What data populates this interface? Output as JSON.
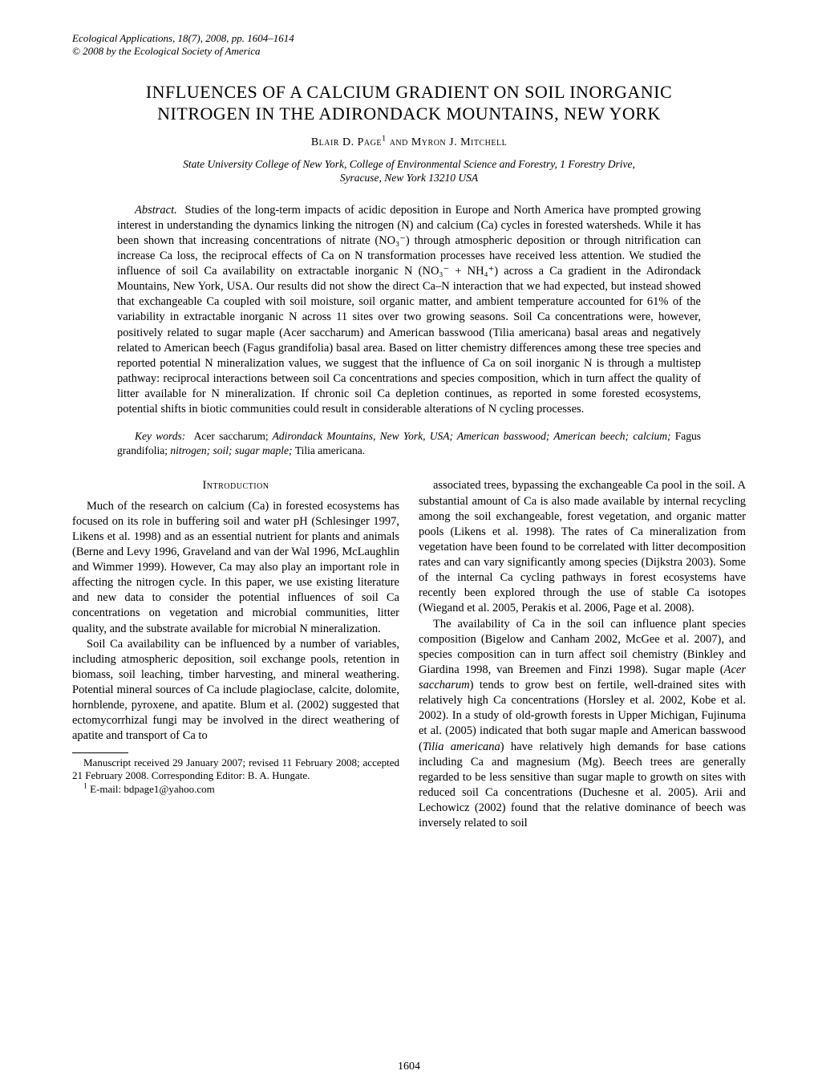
{
  "running_head": {
    "line1": "Ecological Applications, 18(7), 2008, pp. 1604–1614",
    "line2": "© 2008 by the Ecological Society of America"
  },
  "title_line1": "INFLUENCES OF A CALCIUM GRADIENT ON SOIL INORGANIC",
  "title_line2": "NITROGEN IN THE ADIRONDACK MOUNTAINS, NEW YORK",
  "authors_html": "Blair D. Page<sup>1</sup> and Myron J. Mitchell",
  "affiliation_line1": "State University College of New York, College of Environmental Science and Forestry, 1 Forestry Drive,",
  "affiliation_line2": "Syracuse, New York 13210 USA",
  "abstract_label": "Abstract.",
  "abstract_body": "Studies of the long-term impacts of acidic deposition in Europe and North America have prompted growing interest in understanding the dynamics linking the nitrogen (N) and calcium (Ca) cycles in forested watersheds. While it has been shown that increasing concentrations of nitrate (NO₃⁻) through atmospheric deposition or through nitrification can increase Ca loss, the reciprocal effects of Ca on N transformation processes have received less attention. We studied the influence of soil Ca availability on extractable inorganic N (NO₃⁻ + NH₄⁺) across a Ca gradient in the Adirondack Mountains, New York, USA. Our results did not show the direct Ca–N interaction that we had expected, but instead showed that exchangeable Ca coupled with soil moisture, soil organic matter, and ambient temperature accounted for 61% of the variability in extractable inorganic N across 11 sites over two growing seasons. Soil Ca concentrations were, however, positively related to sugar maple (Acer saccharum) and American basswood (Tilia americana) basal areas and negatively related to American beech (Fagus grandifolia) basal area. Based on litter chemistry differences among these tree species and reported potential N mineralization values, we suggest that the influence of Ca on soil inorganic N is through a multistep pathway: reciprocal interactions between soil Ca concentrations and species composition, which in turn affect the quality of litter available for N mineralization. If chronic soil Ca depletion continues, as reported in some forested ecosystems, potential shifts in biotic communities could result in considerable alterations of N cycling processes.",
  "keywords_label": "Key words:",
  "keywords_body_html": "<span class=\"kw-roman\">Acer saccharum;</span> Adirondack Mountains, New York, USA; American basswood; American beech; calcium; <span class=\"kw-roman\">Fagus grandifolia;</span> nitrogen; soil; sugar maple; <span class=\"kw-roman\">Tilia americana.</span>",
  "section_heading": "Introduction",
  "col1_p1": "Much of the research on calcium (Ca) in forested ecosystems has focused on its role in buffering soil and water pH (Schlesinger 1997, Likens et al. 1998) and as an essential nutrient for plants and animals (Berne and Levy 1996, Graveland and van der Wal 1996, McLaughlin and Wimmer 1999). However, Ca may also play an important role in affecting the nitrogen cycle. In this paper, we use existing literature and new data to consider the potential influences of soil Ca concentrations on vegetation and microbial communities, litter quality, and the substrate available for microbial N mineralization.",
  "col1_p2": "Soil Ca availability can be influenced by a number of variables, including atmospheric deposition, soil exchange pools, retention in biomass, soil leaching, timber harvesting, and mineral weathering. Potential mineral sources of Ca include plagioclase, calcite, dolomite, hornblende, pyroxene, and apatite. Blum et al. (2002) suggested that ectomycorrhizal fungi may be involved in the direct weathering of apatite and transport of Ca to",
  "footnote1": "Manuscript received 29 January 2007; revised 11 February 2008; accepted 21 February 2008. Corresponding Editor: B. A. Hungate.",
  "footnote2_html": "<sup>1</sup> E-mail: bdpage1@yahoo.com",
  "col2_p1": "associated trees, bypassing the exchangeable Ca pool in the soil. A substantial amount of Ca is also made available by internal recycling among the soil exchangeable, forest vegetation, and organic matter pools (Likens et al. 1998). The rates of Ca mineralization from vegetation have been found to be correlated with litter decomposition rates and can vary significantly among species (Dijkstra 2003). Some of the internal Ca cycling pathways in forest ecosystems have recently been explored through the use of stable Ca isotopes (Wiegand et al. 2005, Perakis et al. 2006, Page et al. 2008).",
  "col2_p2_html": "The availability of Ca in the soil can influence plant species composition (Bigelow and Canham 2002, McGee et al. 2007), and species composition can in turn affect soil chemistry (Binkley and Giardina 1998, van Breemen and Finzi 1998). Sugar maple (<span class=\"ital\">Acer saccharum</span>) tends to grow best on fertile, well-drained sites with relatively high Ca concentrations (Horsley et al. 2002, Kobe et al. 2002). In a study of old-growth forests in Upper Michigan, Fujinuma et al. (2005) indicated that both sugar maple and American basswood (<span class=\"ital\">Tilia americana</span>) have relatively high demands for base cations including Ca and magnesium (Mg). Beech trees are generally regarded to be less sensitive than sugar maple to growth on sites with reduced soil Ca concentrations (Duchesne et al. 2005). Arii and Lechowicz (2002) found that the relative dominance of beech was inversely related to soil",
  "page_number": "1604"
}
